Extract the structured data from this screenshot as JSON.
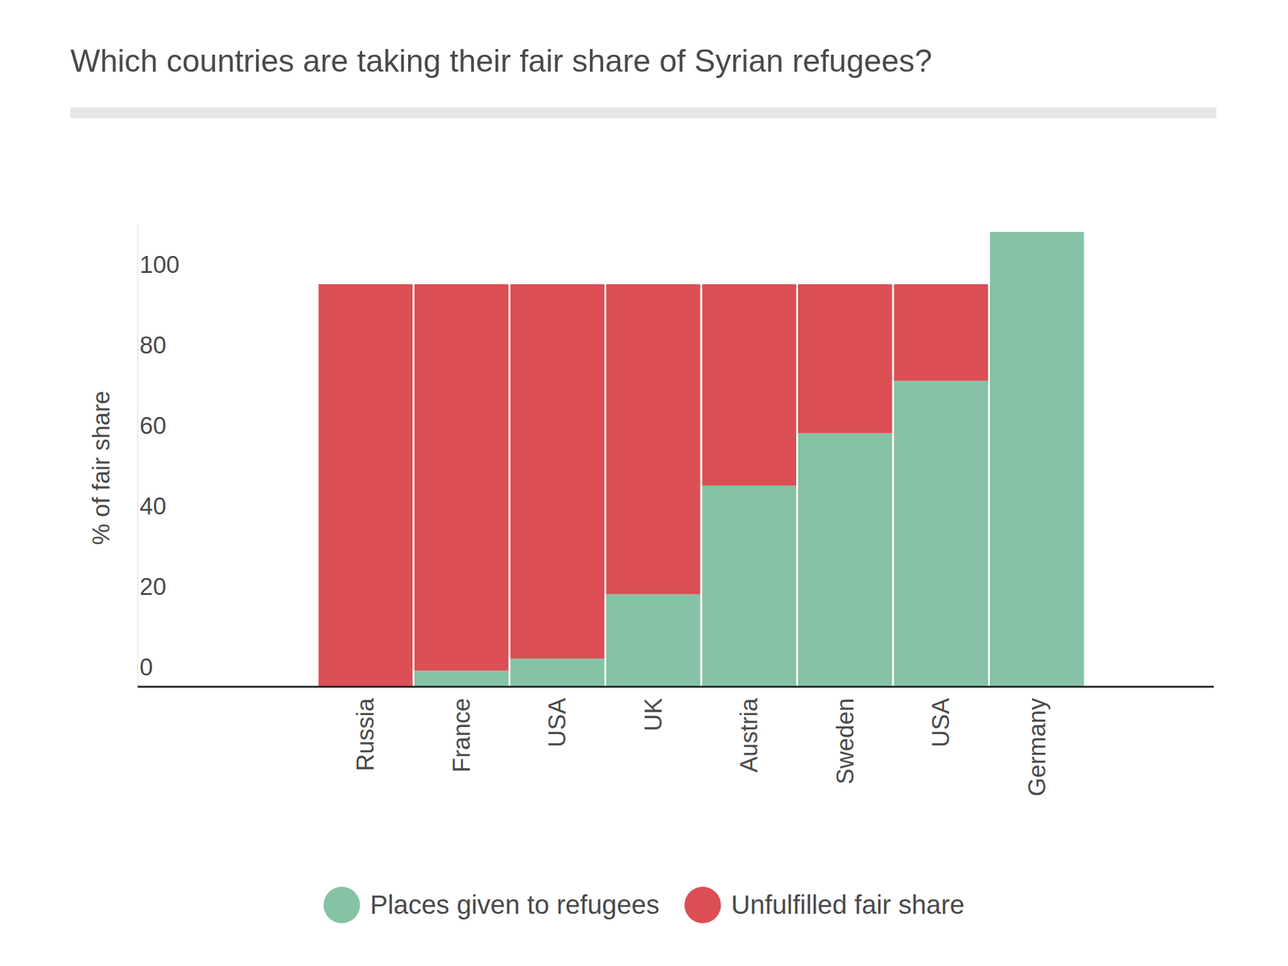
{
  "chart_data": {
    "type": "bar",
    "title": "Which countries are taking their fair share of Syrian refugees?",
    "y_label": "% of fair share",
    "categories": [
      "Russia",
      "France",
      "USA",
      "UK",
      "Austria",
      "Sweden",
      "USA",
      "Germany"
    ],
    "series": [
      {
        "name": "Places given to refugees",
        "color": "#86c2a5",
        "values": [
          0,
          4,
          7,
          23,
          50,
          63,
          76,
          113
        ]
      },
      {
        "name": "Unfulfilled fair share",
        "color": "#db4f55",
        "values": [
          100,
          96,
          93,
          77,
          50,
          37,
          24,
          0
        ]
      }
    ],
    "stacked": true,
    "ylim": [
      0,
      115
    ],
    "yticks": [
      0,
      20,
      40,
      60,
      80,
      100
    ],
    "grid": false,
    "legend": "bottom"
  }
}
